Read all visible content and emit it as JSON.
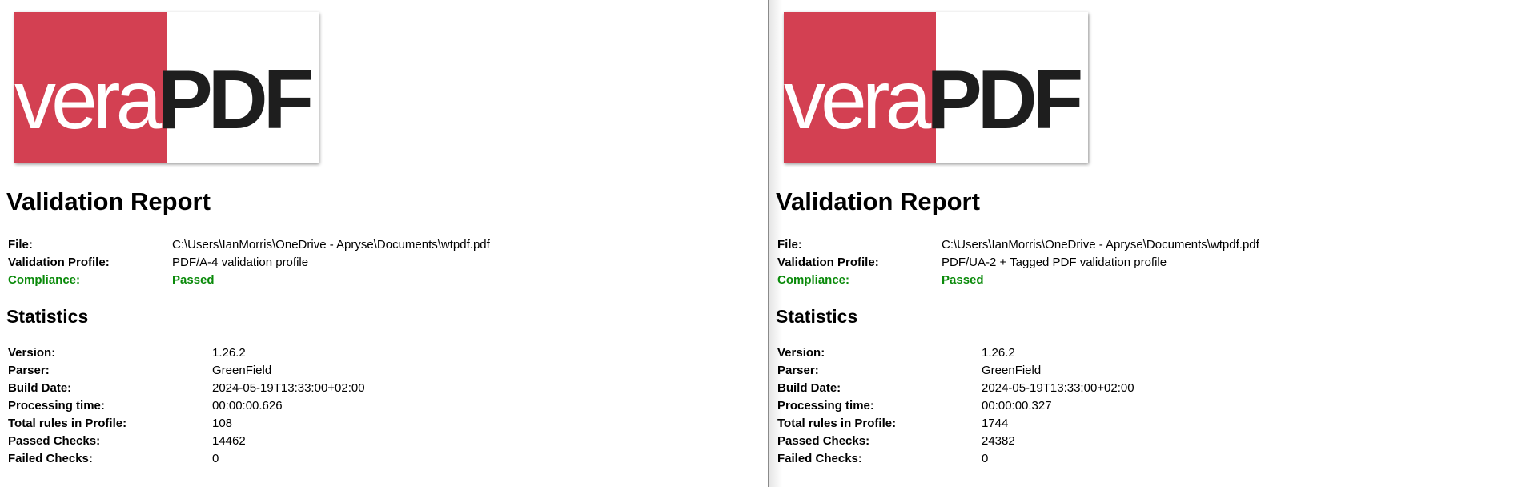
{
  "reports": [
    {
      "logo": {
        "vera": "vera",
        "pdf": "PDF"
      },
      "title": "Validation Report",
      "summary": [
        {
          "label": "File:",
          "value": "C:\\Users\\IanMorris\\OneDrive - Apryse\\Documents\\wtpdf.pdf"
        },
        {
          "label": "Validation Profile:",
          "value": "PDF/A-4 validation profile"
        },
        {
          "label": "Compliance:",
          "value": "Passed"
        }
      ],
      "statistics_title": "Statistics",
      "statistics": [
        {
          "label": "Version:",
          "value": "1.26.2"
        },
        {
          "label": "Parser:",
          "value": "GreenField"
        },
        {
          "label": "Build Date:",
          "value": "2024-05-19T13:33:00+02:00"
        },
        {
          "label": "Processing time:",
          "value": "00:00:00.626"
        },
        {
          "label": "Total rules in Profile:",
          "value": "108"
        },
        {
          "label": "Passed Checks:",
          "value": "14462"
        },
        {
          "label": "Failed Checks:",
          "value": "0"
        }
      ]
    },
    {
      "logo": {
        "vera": "vera",
        "pdf": "PDF"
      },
      "title": "Validation Report",
      "summary": [
        {
          "label": "File:",
          "value": "C:\\Users\\IanMorris\\OneDrive - Apryse\\Documents\\wtpdf.pdf"
        },
        {
          "label": "Validation Profile:",
          "value": "PDF/UA-2 + Tagged PDF validation profile"
        },
        {
          "label": "Compliance:",
          "value": "Passed"
        }
      ],
      "statistics_title": "Statistics",
      "statistics": [
        {
          "label": "Version:",
          "value": "1.26.2"
        },
        {
          "label": "Parser:",
          "value": "GreenField"
        },
        {
          "label": "Build Date:",
          "value": "2024-05-19T13:33:00+02:00"
        },
        {
          "label": "Processing time:",
          "value": "00:00:00.327"
        },
        {
          "label": "Total rules in Profile:",
          "value": "1744"
        },
        {
          "label": "Passed Checks:",
          "value": "24382"
        },
        {
          "label": "Failed Checks:",
          "value": "0"
        }
      ]
    }
  ],
  "colors": {
    "logo_red": "#d34052",
    "compliance_green": "#0a8a0a"
  }
}
